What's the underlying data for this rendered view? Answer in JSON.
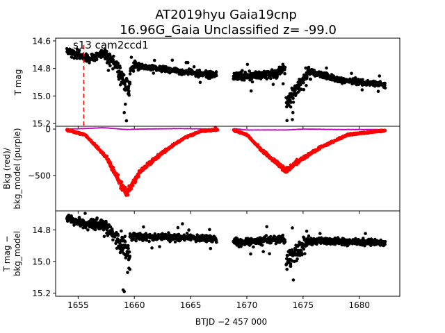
{
  "title_line1": "AT2019hyu  Gaia19cnp",
  "title_line2": "16.96G_Gaia Unclassified z= -99.0",
  "annotation": "s13 cam2ccd1",
  "colors": {
    "lightcurve": "#000000",
    "bkg": "#ff0000",
    "bkg_model": "#bf00bf",
    "marker_line": "#ff0000"
  },
  "chart_data": [
    {
      "type": "scatter",
      "panel": "top",
      "ylabel": "T mag",
      "xlim": [
        1653,
        1683.6
      ],
      "ylim": [
        15.22,
        14.58
      ],
      "yticks": [
        14.6,
        14.8,
        15.0,
        15.2
      ],
      "ytick_labels": [
        "14.6",
        "14.8",
        "15.0",
        "15.2"
      ],
      "vline_x": 1655.5,
      "series": [
        {
          "segments": [
            {
              "x": [
                1654.0,
                1656.0
              ],
              "y": [
                14.67,
                14.73
              ],
              "spread": 0.025
            },
            {
              "x": [
                1656.0,
                1657.3
              ],
              "y": [
                14.73,
                14.69
              ],
              "spread": 0.025
            },
            {
              "x": [
                1657.3,
                1658.5
              ],
              "y": [
                14.7,
                14.78
              ],
              "spread": 0.035
            },
            {
              "x": [
                1658.5,
                1659.6
              ],
              "y": [
                14.8,
                14.95
              ],
              "spread": 0.07
            },
            {
              "x": [
                1659.6,
                1660.1
              ],
              "y": [
                14.82,
                14.76
              ],
              "spread": 0.03
            },
            {
              "x": [
                1660.1,
                1665.0
              ],
              "y": [
                14.78,
                14.83
              ],
              "spread": 0.02
            },
            {
              "x": [
                1665.0,
                1667.3
              ],
              "y": [
                14.83,
                14.85
              ],
              "spread": 0.02
            },
            {
              "x": [
                1668.8,
                1672.5
              ],
              "y": [
                14.86,
                14.84
              ],
              "spread": 0.03
            },
            {
              "x": [
                1672.5,
                1673.4
              ],
              "y": [
                14.84,
                14.8
              ],
              "spread": 0.04
            },
            {
              "x": [
                1673.5,
                1675.5
              ],
              "y": [
                15.05,
                14.82
              ],
              "spread": 0.05
            },
            {
              "x": [
                1675.5,
                1678.0
              ],
              "y": [
                14.82,
                14.88
              ],
              "spread": 0.02
            },
            {
              "x": [
                1678.0,
                1682.3
              ],
              "y": [
                14.88,
                14.92
              ],
              "spread": 0.018
            }
          ]
        }
      ]
    },
    {
      "type": "scatter",
      "panel": "middle",
      "ylabel": "Bkg (red)/\nbkg_model (purple)",
      "xlim": [
        1653,
        1683.6
      ],
      "ylim": [
        -880,
        30
      ],
      "yticks": [
        0,
        -500
      ],
      "ytick_labels": [
        "0",
        "−500"
      ],
      "series": [
        {
          "name": "Bkg (red)",
          "anchors": {
            "x": [
              1654.0,
              1655.6,
              1657.5,
              1659.0,
              1659.4,
              1660.5,
              1662.5,
              1664.5,
              1666.0,
              1667.4,
              1668.8,
              1670.0,
              1671.5,
              1673.5,
              1674.5,
              1676.5,
              1679.0,
              1682.3
            ],
            "y": [
              -10,
              -60,
              -300,
              -640,
              -680,
              -460,
              -250,
              -90,
              -20,
              -5,
              -10,
              -60,
              -250,
              -450,
              -350,
              -200,
              -60,
              -15
            ]
          }
        },
        {
          "name": "bkg_model (purple)",
          "anchors": {
            "x": [
              1654.0,
              1655.5,
              1657.2,
              1659.3,
              1660.5,
              1664.0,
              1667.3,
              1668.8,
              1670.0,
              1673.5,
              1675.0,
              1678.0,
              1682.3
            ],
            "y": [
              0,
              5,
              15,
              -5,
              0,
              5,
              0,
              5,
              -10,
              -10,
              0,
              -5,
              -5
            ]
          }
        }
      ]
    },
    {
      "type": "scatter",
      "panel": "bottom",
      "ylabel": "T mag −\nbkg_model",
      "xlabel": "BTJD −2 457 000",
      "xlim": [
        1653,
        1683.6
      ],
      "ylim": [
        15.22,
        14.68
      ],
      "xticks": [
        1655,
        1660,
        1665,
        1670,
        1675,
        1680
      ],
      "xtick_labels": [
        "1655",
        "1660",
        "1665",
        "1670",
        "1675",
        "1680"
      ],
      "yticks": [
        14.8,
        15.0,
        15.2
      ],
      "ytick_labels": [
        "14.8",
        "15.0",
        "15.2"
      ],
      "series": [
        {
          "segments": [
            {
              "x": [
                1654.0,
                1656.0
              ],
              "y": [
                14.73,
                14.77
              ],
              "spread": 0.025
            },
            {
              "x": [
                1656.0,
                1657.5
              ],
              "y": [
                14.76,
                14.77
              ],
              "spread": 0.03
            },
            {
              "x": [
                1657.5,
                1658.4
              ],
              "y": [
                14.78,
                14.84
              ],
              "spread": 0.04
            },
            {
              "x": [
                1658.4,
                1659.6
              ],
              "y": [
                14.86,
                14.96
              ],
              "spread": 0.07
            },
            {
              "x": [
                1659.6,
                1665.0
              ],
              "y": [
                14.84,
                14.85
              ],
              "spread": 0.02
            },
            {
              "x": [
                1665.0,
                1667.3
              ],
              "y": [
                14.85,
                14.86
              ],
              "spread": 0.018
            },
            {
              "x": [
                1668.8,
                1673.4
              ],
              "y": [
                14.88,
                14.86
              ],
              "spread": 0.025
            },
            {
              "x": [
                1673.5,
                1675.5
              ],
              "y": [
                15.0,
                14.87
              ],
              "spread": 0.05
            },
            {
              "x": [
                1675.5,
                1682.3
              ],
              "y": [
                14.87,
                14.88
              ],
              "spread": 0.02
            }
          ]
        }
      ]
    }
  ]
}
